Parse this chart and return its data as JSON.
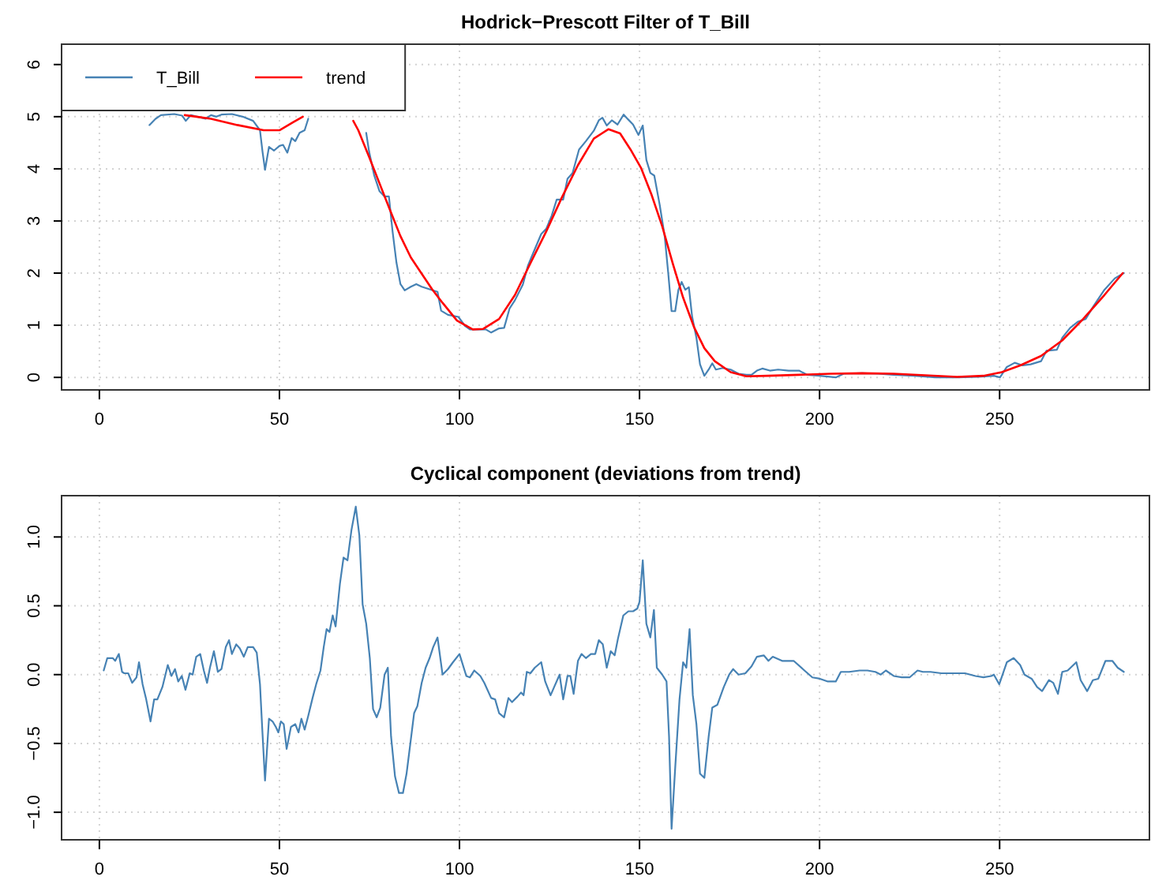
{
  "chart_data": [
    {
      "type": "line",
      "title": "Hodrick−Prescott Filter of T_Bill",
      "xlim": [
        -10.5,
        291.6
      ],
      "xticks": [
        0,
        50,
        100,
        150,
        200,
        250
      ],
      "ylim": [
        -0.24,
        6.39
      ],
      "yticks": [
        0,
        1,
        2,
        3,
        4,
        5,
        6
      ],
      "grid": true,
      "legend": "top left",
      "series": [
        {
          "name": "T_Bill",
          "color": "#4682b4",
          "x": [
            13.9,
            15.6,
            17.1,
            20.8,
            23.0,
            24.0,
            25.4,
            29.5,
            31.0,
            32.5,
            33.9,
            36.8,
            39.8,
            42.7,
            44.6,
            45.3,
            46.0,
            47.1,
            48.5,
            50.0,
            51.0,
            52.2,
            53.4,
            54.4,
            55.6,
            57.0,
            58.0,
            66,
            74.1,
            74.9,
            76.3,
            77.8,
            79.2,
            80.4,
            81.4,
            82.5,
            83.6,
            84.8,
            86.5,
            88.0,
            89.5,
            91.7,
            93.9,
            94.9,
            96.8,
            99.7,
            101.5,
            102.9,
            105.1,
            107.3,
            108.8,
            111.0,
            112.4,
            113.9,
            115.4,
            117.6,
            119.0,
            120.5,
            122.7,
            124.1,
            125.6,
            127.0,
            128.8,
            130.0,
            131.4,
            133.2,
            135.1,
            137.3,
            138.7,
            139.7,
            140.9,
            142.3,
            143.9,
            145.6,
            146.8,
            148.2,
            149.7,
            150.9,
            151.9,
            153.0,
            154.1,
            155.6,
            157.0,
            158.0,
            158.9,
            159.9,
            160.8,
            161.7,
            162.7,
            163.7,
            164.6,
            165.8,
            166.8,
            168.0,
            169.2,
            170.2,
            171.2,
            173.1,
            175.3,
            177.5,
            179.7,
            181.1,
            182.6,
            184.1,
            186.2,
            188.5,
            191.4,
            194.3,
            196.5,
            200.1,
            204.5,
            206.7,
            211.8,
            216.2,
            220.6,
            226.4,
            232.3,
            238.2,
            244.0,
            248.4,
            250.1,
            252.0,
            254.2,
            256.4,
            258.6,
            261.5,
            263.0,
            265.9,
            267.4,
            269.6,
            271.8,
            273.9,
            276.1,
            279.1,
            282.0,
            284.5
          ],
          "values": [
            4.84,
            4.96,
            5.03,
            5.05,
            5.02,
            4.92,
            5.03,
            4.96,
            5.03,
            5.0,
            5.04,
            5.05,
            5.0,
            4.92,
            4.74,
            4.33,
            3.98,
            4.42,
            4.35,
            4.44,
            4.46,
            4.31,
            4.59,
            4.53,
            4.69,
            4.74,
            4.96,
            null,
            4.69,
            4.33,
            3.88,
            3.57,
            3.47,
            3.47,
            2.81,
            2.2,
            1.79,
            1.67,
            1.74,
            1.79,
            1.74,
            1.69,
            1.64,
            1.28,
            1.2,
            1.16,
            0.99,
            0.92,
            0.92,
            0.92,
            0.86,
            0.94,
            0.95,
            1.32,
            1.48,
            1.78,
            2.14,
            2.39,
            2.75,
            2.85,
            3.1,
            3.41,
            3.41,
            3.81,
            3.92,
            4.37,
            4.53,
            4.73,
            4.93,
            4.98,
            4.83,
            4.93,
            4.85,
            5.04,
            4.95,
            4.85,
            4.65,
            4.83,
            4.17,
            3.92,
            3.87,
            3.31,
            2.7,
            1.98,
            1.27,
            1.27,
            1.68,
            1.83,
            1.68,
            1.73,
            1.17,
            0.76,
            0.25,
            0.03,
            0.15,
            0.27,
            0.15,
            0.18,
            0.15,
            0.07,
            0.05,
            0.05,
            0.13,
            0.17,
            0.13,
            0.15,
            0.13,
            0.13,
            0.05,
            0.03,
            0,
            0.07,
            0.08,
            0.07,
            0.05,
            0.03,
            0,
            0,
            0.01,
            0.03,
            0,
            0.2,
            0.28,
            0.23,
            0.25,
            0.31,
            0.51,
            0.53,
            0.76,
            0.95,
            1.07,
            1.12,
            1.37,
            1.68,
            1.9,
            2.0
          ]
        },
        {
          "name": "trend",
          "color": "#ff0000",
          "x": [
            23.7,
            31.0,
            38.3,
            45.6,
            50.0,
            53.7,
            56.5,
            63,
            70.5,
            71.9,
            74.9,
            77.8,
            80.7,
            83.6,
            86.5,
            89.5,
            92.4,
            95.3,
            99.3,
            103.7,
            106.6,
            111.0,
            115.4,
            119.7,
            124.1,
            128.5,
            132.9,
            137.3,
            141.4,
            144.6,
            147.5,
            150.4,
            153.3,
            156.3,
            159.2,
            162.1,
            165.1,
            168.0,
            170.9,
            175.3,
            179.7,
            185.5,
            194.3,
            203.1,
            211.8,
            220.6,
            229.4,
            238.2,
            245.5,
            250.6,
            255.7,
            261.5,
            267.4,
            273.2,
            279.1,
            284.2
          ],
          "values": [
            5.03,
            4.96,
            4.84,
            4.74,
            4.74,
            4.89,
            5.0,
            null,
            4.92,
            4.74,
            4.23,
            3.72,
            3.21,
            2.71,
            2.3,
            1.99,
            1.69,
            1.43,
            1.09,
            0.92,
            0.93,
            1.12,
            1.58,
            2.19,
            2.8,
            3.46,
            4.07,
            4.58,
            4.76,
            4.68,
            4.37,
            4.02,
            3.51,
            2.9,
            2.19,
            1.53,
            0.97,
            0.56,
            0.31,
            0.1,
            0.02,
            0.03,
            0.05,
            0.07,
            0.08,
            0.07,
            0.04,
            0.01,
            0.03,
            0.1,
            0.23,
            0.41,
            0.71,
            1.12,
            1.58,
            2.0
          ]
        }
      ]
    },
    {
      "type": "line",
      "title": "Cyclical component (deviations from trend)",
      "xlim": [
        -10.5,
        291.6
      ],
      "xticks": [
        0,
        50,
        100,
        150,
        200,
        250
      ],
      "ylim": [
        -1.2,
        1.3
      ],
      "yticks": [
        {
          "value": -1,
          "label": "−1.0"
        },
        {
          "value": -0.5,
          "label": "−0.5"
        },
        {
          "value": 0,
          "label": "0.0"
        },
        {
          "value": 0.5,
          "label": "0.5"
        },
        {
          "value": 1,
          "label": "1.0"
        }
      ],
      "grid": true,
      "series": [
        {
          "color": "#4682b4",
          "x": [
            1.2,
            2.2,
            3.7,
            4.4,
            5.4,
            6.3,
            6.9,
            8.0,
            9.1,
            10.3,
            11.0,
            12.0,
            13.0,
            14.2,
            15.2,
            16.1,
            17.5,
            19.0,
            20.0,
            21.0,
            21.9,
            22.9,
            23.9,
            25.1,
            25.9,
            26.9,
            28.0,
            29.0,
            29.9,
            30.7,
            31.8,
            32.9,
            33.9,
            35.1,
            36.0,
            36.8,
            38.0,
            39.0,
            40.1,
            41.2,
            42.7,
            43.7,
            44.6,
            45.2,
            46.0,
            47.1,
            48.1,
            49.0,
            49.7,
            50.4,
            51.2,
            52.0,
            53.2,
            54.4,
            55.3,
            56.1,
            57.0,
            58.0,
            59.2,
            60.2,
            61.4,
            62.3,
            63.1,
            63.9,
            64.8,
            65.6,
            66.8,
            67.8,
            68.9,
            70.0,
            71.2,
            72.2,
            73.1,
            74.1,
            75.1,
            76.0,
            77.0,
            78.0,
            79.2,
            80.1,
            81.0,
            82.1,
            83.2,
            84.3,
            85.3,
            86.5,
            87.4,
            88.3,
            89.5,
            90.6,
            91.7,
            92.7,
            93.9,
            95.3,
            96.8,
            98.2,
            100.0,
            101.9,
            102.9,
            104.1,
            105.8,
            106.9,
            108.8,
            109.9,
            111.0,
            112.4,
            113.6,
            114.6,
            116.1,
            117.1,
            117.8,
            118.7,
            119.7,
            120.9,
            122.7,
            123.8,
            125.3,
            126.3,
            127.8,
            128.8,
            130.0,
            130.8,
            131.7,
            132.9,
            133.9,
            135.1,
            136.5,
            137.7,
            138.7,
            139.8,
            140.9,
            142.0,
            143.1,
            144.0,
            145.5,
            146.9,
            148.2,
            149.4,
            150.0,
            150.9,
            151.9,
            153.0,
            154.0,
            154.8,
            156.3,
            157.5,
            158.2,
            158.9,
            159.9,
            161.1,
            162.1,
            163.0,
            163.9,
            164.8,
            165.8,
            166.8,
            168.0,
            169.2,
            170.2,
            171.6,
            173.4,
            174.9,
            176.0,
            177.5,
            179.4,
            181.1,
            182.6,
            184.5,
            185.8,
            187.0,
            189.6,
            192.8,
            195.8,
            198.0,
            200.1,
            202.3,
            204.5,
            205.9,
            208.2,
            211.1,
            213.3,
            215.5,
            217.0,
            218.4,
            220.6,
            222.8,
            225.0,
            227.2,
            228.7,
            230.8,
            233.8,
            236.7,
            240.4,
            243.3,
            245.5,
            247.7,
            248.4,
            249.9,
            252.0,
            253.9,
            255.7,
            256.9,
            258.9,
            260.4,
            261.8,
            263.7,
            264.9,
            266.2,
            267.4,
            268.9,
            271.3,
            272.5,
            274.3,
            275.9,
            277.4,
            279.4,
            280.6,
            281.3,
            282.8,
            284.5
          ],
          "values": [
            0.03,
            0.12,
            0.12,
            0.1,
            0.15,
            0.02,
            0.01,
            0.01,
            -0.06,
            -0.02,
            0.09,
            -0.07,
            -0.18,
            -0.34,
            -0.18,
            -0.18,
            -0.09,
            0.07,
            -0.01,
            0.04,
            -0.05,
            -0.01,
            -0.11,
            0.01,
            0,
            0.13,
            0.15,
            0.03,
            -0.06,
            0.05,
            0.17,
            0.02,
            0.04,
            0.2,
            0.25,
            0.15,
            0.22,
            0.19,
            0.13,
            0.2,
            0.2,
            0.16,
            -0.07,
            -0.38,
            -0.77,
            -0.32,
            -0.34,
            -0.38,
            -0.42,
            -0.34,
            -0.36,
            -0.54,
            -0.38,
            -0.36,
            -0.42,
            -0.32,
            -0.4,
            -0.3,
            -0.17,
            -0.07,
            0.03,
            0.2,
            0.33,
            0.31,
            0.43,
            0.35,
            0.66,
            0.85,
            0.83,
            1.05,
            1.22,
            1.01,
            0.51,
            0.37,
            0.12,
            -0.25,
            -0.31,
            -0.24,
            0,
            0.05,
            -0.45,
            -0.74,
            -0.86,
            -0.86,
            -0.72,
            -0.47,
            -0.28,
            -0.23,
            -0.06,
            0.05,
            0.12,
            0.2,
            0.27,
            0,
            0.04,
            0.09,
            0.15,
            -0.01,
            -0.02,
            0.03,
            -0.01,
            -0.06,
            -0.17,
            -0.18,
            -0.28,
            -0.31,
            -0.17,
            -0.2,
            -0.16,
            -0.13,
            -0.15,
            0.02,
            0.01,
            0.05,
            0.09,
            -0.05,
            -0.15,
            -0.09,
            0,
            -0.18,
            -0.01,
            -0.01,
            -0.14,
            0.1,
            0.15,
            0.12,
            0.15,
            0.15,
            0.25,
            0.22,
            0.05,
            0.17,
            0.14,
            0.26,
            0.43,
            0.46,
            0.46,
            0.48,
            0.53,
            0.83,
            0.37,
            0.27,
            0.47,
            0.05,
            0,
            -0.05,
            -0.45,
            -1.12,
            -0.68,
            -0.18,
            0.09,
            0.05,
            0.33,
            -0.15,
            -0.36,
            -0.72,
            -0.75,
            -0.45,
            -0.24,
            -0.22,
            -0.09,
            0,
            0.04,
            0,
            0.01,
            0.06,
            0.13,
            0.14,
            0.1,
            0.13,
            0.1,
            0.1,
            0.03,
            -0.02,
            -0.03,
            -0.05,
            -0.05,
            0.02,
            0.02,
            0.03,
            0.03,
            0.02,
            0,
            0.03,
            -0.01,
            -0.02,
            -0.02,
            0.03,
            0.02,
            0.02,
            0.01,
            0.01,
            0.01,
            -0.01,
            -0.02,
            -0.01,
            0,
            -0.07,
            0.09,
            0.12,
            0.07,
            0,
            -0.03,
            -0.09,
            -0.12,
            -0.04,
            -0.06,
            -0.14,
            0.02,
            0.03,
            0.09,
            -0.04,
            -0.12,
            -0.04,
            -0.03,
            0.1,
            0.1,
            0.1,
            0.05,
            0.02
          ]
        }
      ]
    }
  ]
}
